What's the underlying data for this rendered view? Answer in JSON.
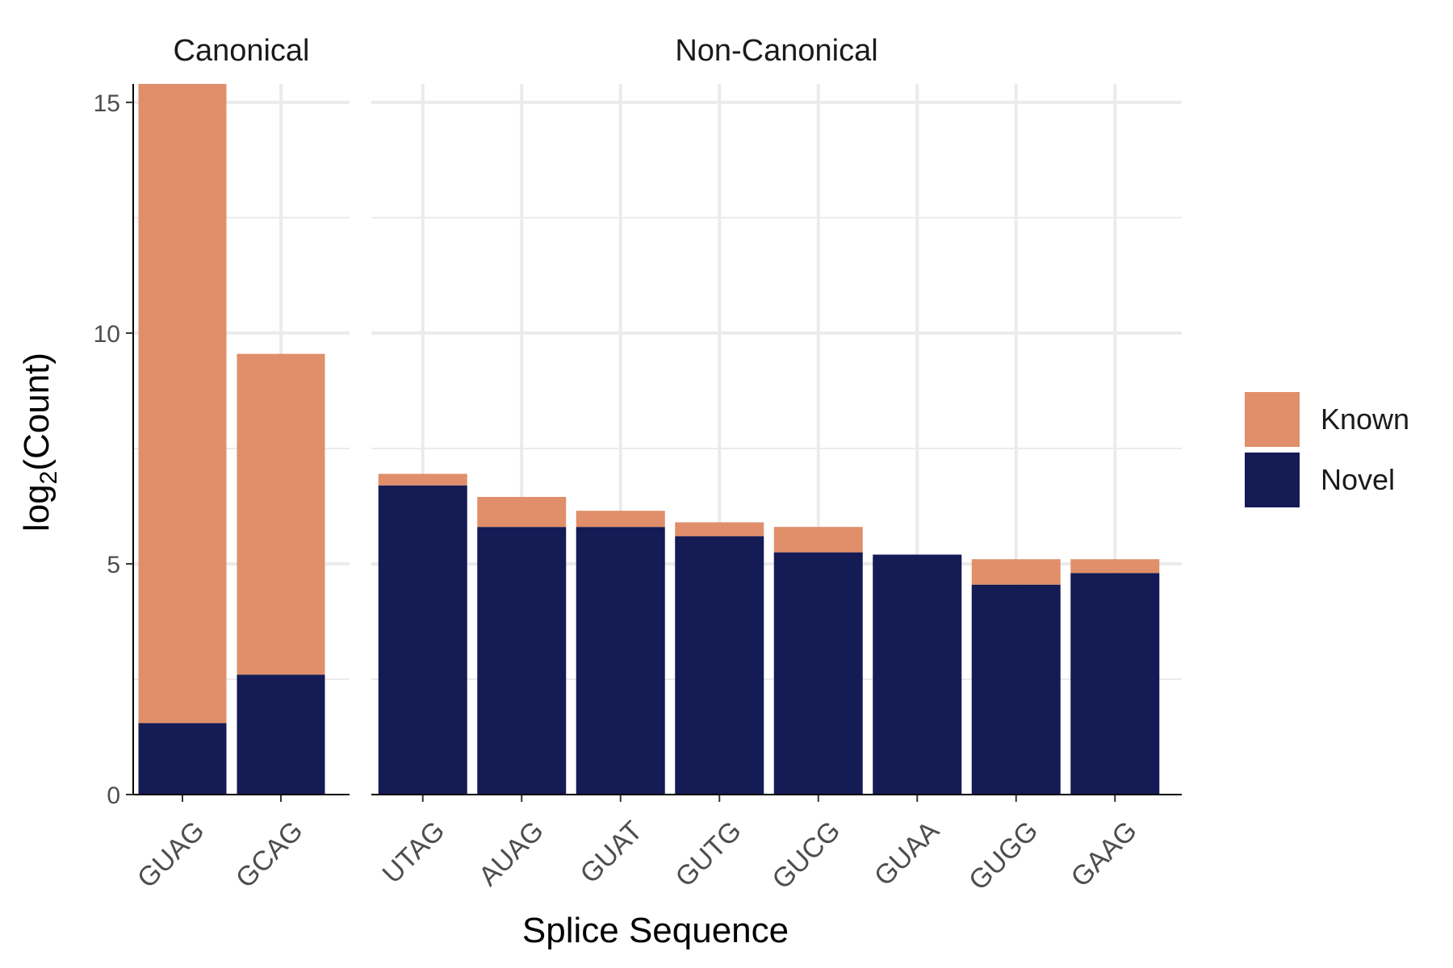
{
  "chart_data": {
    "type": "bar",
    "stacked": true,
    "xlabel": "Splice Sequence",
    "ylabel_base": "log",
    "ylabel_sub": "2",
    "ylabel_rest": "(Count)",
    "ylim": [
      0,
      15.4
    ],
    "yticks": [
      0,
      5,
      10,
      15
    ],
    "grid": true,
    "legend_position": "right",
    "colors": {
      "Known": "#e08f6a",
      "Novel": "#141b55"
    },
    "legend": [
      {
        "name": "Known",
        "color": "#e08f6a"
      },
      {
        "name": "Novel",
        "color": "#141b55"
      }
    ],
    "panels": [
      {
        "title": "Canonical",
        "categories": [
          "GUAG",
          "GCAG"
        ],
        "series": [
          {
            "name": "Novel",
            "values": [
              1.55,
              2.6
            ]
          },
          {
            "name": "Known",
            "values": [
              13.85,
              6.95
            ]
          }
        ]
      },
      {
        "title": "Non-Canonical",
        "categories": [
          "UTAG",
          "AUAG",
          "GUAT",
          "GUTG",
          "GUCG",
          "GUAA",
          "GUGG",
          "GAAG"
        ],
        "series": [
          {
            "name": "Novel",
            "values": [
              6.7,
              5.8,
              5.8,
              5.6,
              5.25,
              5.2,
              4.55,
              4.8
            ]
          },
          {
            "name": "Known",
            "values": [
              0.25,
              0.65,
              0.35,
              0.3,
              0.55,
              0.0,
              0.55,
              0.3
            ]
          }
        ]
      }
    ]
  }
}
